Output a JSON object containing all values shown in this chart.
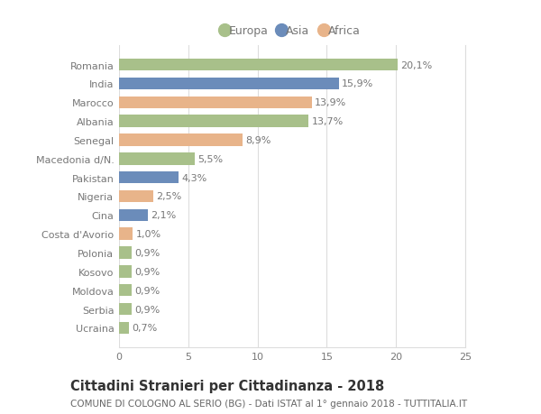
{
  "categories": [
    "Romania",
    "India",
    "Marocco",
    "Albania",
    "Senegal",
    "Macedonia d/N.",
    "Pakistan",
    "Nigeria",
    "Cina",
    "Costa d'Avorio",
    "Polonia",
    "Kosovo",
    "Moldova",
    "Serbia",
    "Ucraina"
  ],
  "values": [
    20.1,
    15.9,
    13.9,
    13.7,
    8.9,
    5.5,
    4.3,
    2.5,
    2.1,
    1.0,
    0.9,
    0.9,
    0.9,
    0.9,
    0.7
  ],
  "labels": [
    "20,1%",
    "15,9%",
    "13,9%",
    "13,7%",
    "8,9%",
    "5,5%",
    "4,3%",
    "2,5%",
    "2,1%",
    "1,0%",
    "0,9%",
    "0,9%",
    "0,9%",
    "0,9%",
    "0,7%"
  ],
  "continents": [
    "Europa",
    "Asia",
    "Africa",
    "Europa",
    "Africa",
    "Europa",
    "Asia",
    "Africa",
    "Asia",
    "Africa",
    "Europa",
    "Europa",
    "Europa",
    "Europa",
    "Europa"
  ],
  "colors": {
    "Europa": "#a8c08a",
    "Asia": "#6b8cba",
    "Africa": "#e8b48a"
  },
  "xlim": [
    0,
    25
  ],
  "xticks": [
    0,
    5,
    10,
    15,
    20,
    25
  ],
  "title1": "Cittadini Stranieri per Cittadinanza - 2018",
  "title2": "COMUNE DI COLOGNO AL SERIO (BG) - Dati ISTAT al 1° gennaio 2018 - TUTTITALIA.IT",
  "background_color": "#ffffff",
  "grid_color": "#dddddd",
  "bar_height": 0.65,
  "text_color": "#777777",
  "label_fontsize": 8.0,
  "tick_fontsize": 8.0,
  "title1_fontsize": 10.5,
  "title2_fontsize": 7.5,
  "legend_fontsize": 9.0
}
